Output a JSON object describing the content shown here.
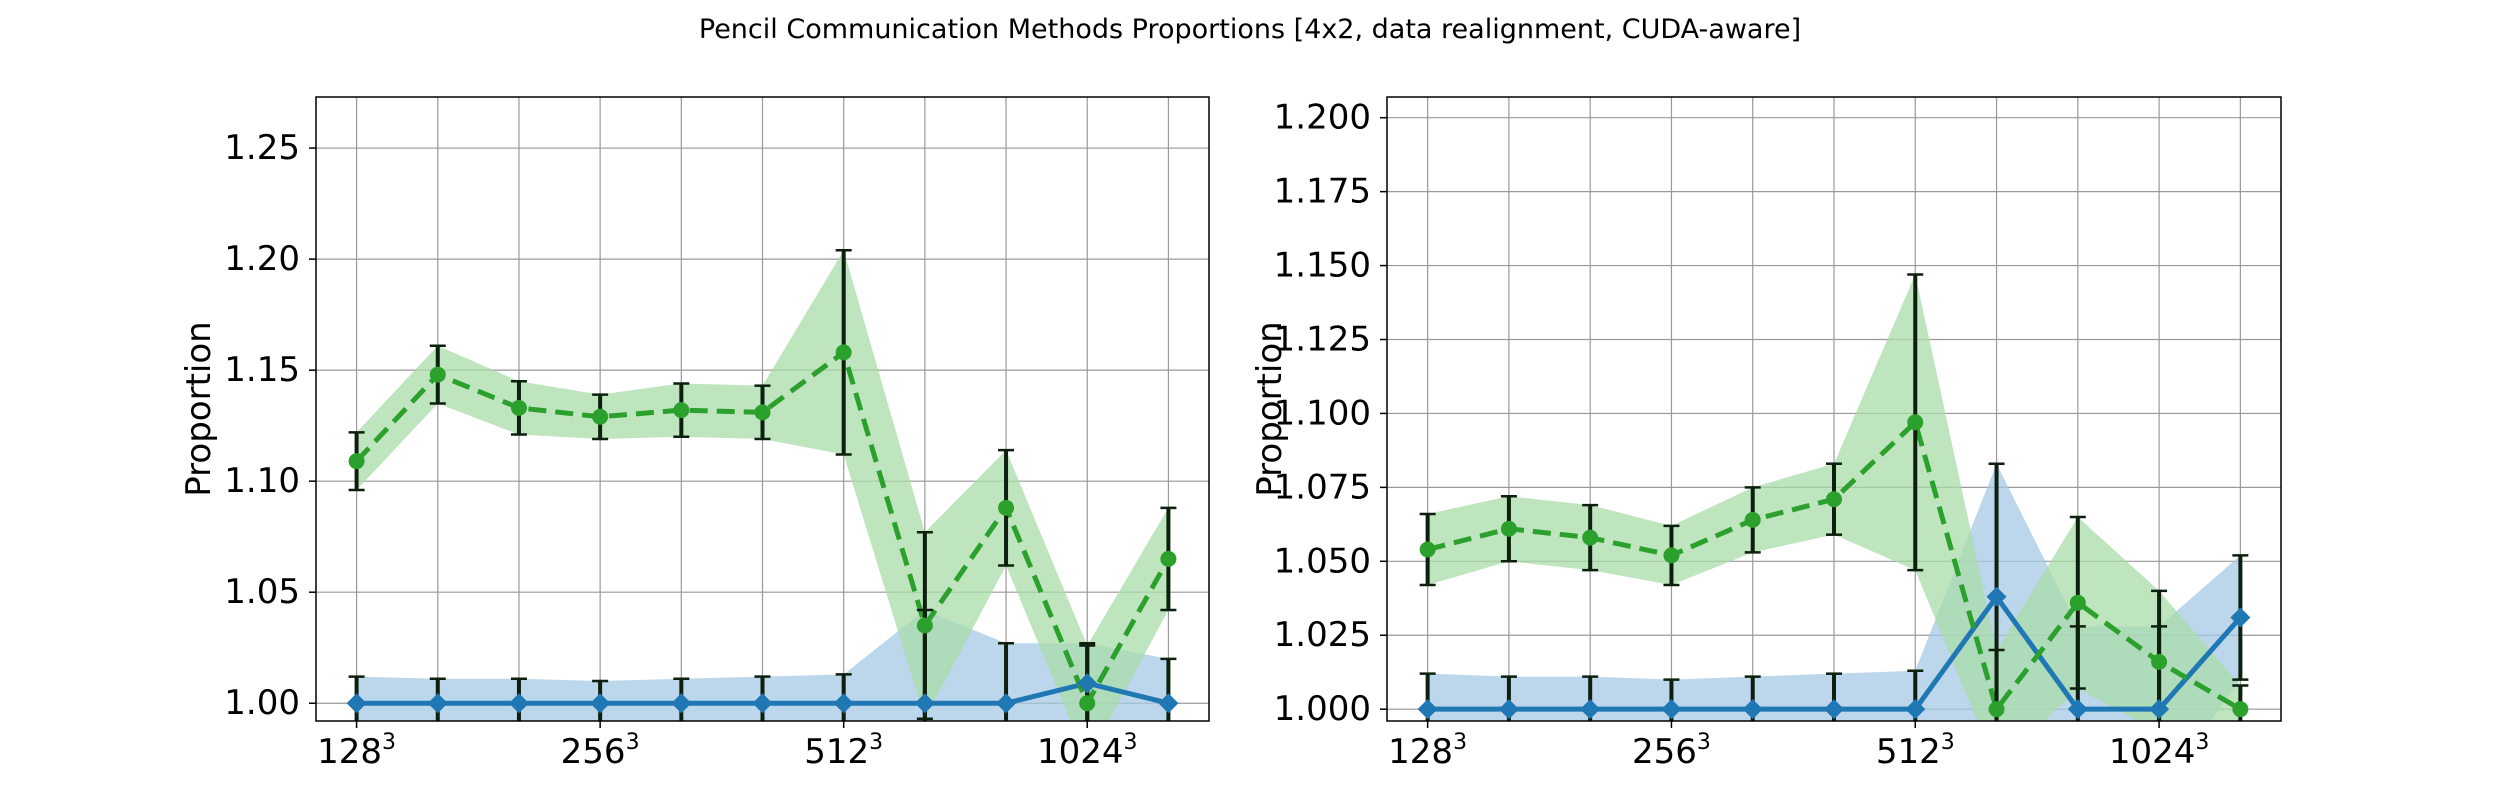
{
  "title": "Pencil Communication Methods Proportions [4x2, data realignment, CUDA-aware]",
  "colors": {
    "blue_line": "#1f77b4",
    "blue_band": "#a6c8e4",
    "green_line": "#2ca02c",
    "green_band": "#a9dca9",
    "error_bar": "#0d1f0d",
    "grid": "#999999"
  },
  "chart_data": [
    {
      "type": "line",
      "ylabel": "Proportion",
      "x": [
        0,
        1,
        2,
        3,
        4,
        5,
        6,
        7,
        8,
        9,
        10
      ],
      "xticks": [
        {
          "x": 0,
          "base": "128",
          "sup": "3"
        },
        {
          "x": 3,
          "base": "256",
          "sup": "3"
        },
        {
          "x": 6,
          "base": "512",
          "sup": "3"
        },
        {
          "x": 9,
          "base": "1024",
          "sup": "3"
        }
      ],
      "yticks": [
        1.0,
        1.05,
        1.1,
        1.15,
        1.2,
        1.25
      ],
      "ytick_labels": [
        "1.00",
        "1.05",
        "1.10",
        "1.15",
        "1.20",
        "1.25"
      ],
      "ylim": [
        0.992,
        1.273
      ],
      "xlim": [
        -0.5,
        10.5
      ],
      "grid": true,
      "series": [
        {
          "style": "solid",
          "marker": "diamond",
          "color": "blue",
          "values": [
            1.0,
            1.0,
            1.0,
            1.0,
            1.0,
            1.0,
            1.0,
            1.0,
            1.0,
            1.009,
            1.0
          ],
          "err": [
            0.012,
            0.011,
            0.011,
            0.01,
            0.011,
            0.012,
            0.013,
            0.042,
            0.027,
            0.018,
            0.02
          ],
          "band_lower": [
            0.992,
            0.992,
            0.992,
            0.992,
            0.992,
            0.992,
            0.992,
            0.992,
            0.992,
            0.992,
            0.992
          ],
          "band_upper": [
            1.012,
            1.011,
            1.011,
            1.01,
            1.011,
            1.012,
            1.013,
            1.042,
            1.027,
            1.027,
            1.02
          ]
        },
        {
          "style": "dashed",
          "marker": "circle",
          "color": "green",
          "values": [
            1.109,
            1.148,
            1.133,
            1.129,
            1.132,
            1.131,
            1.158,
            1.035,
            1.088,
            1.0,
            1.065
          ],
          "err": [
            0.013,
            0.013,
            0.012,
            0.01,
            0.012,
            0.012,
            0.046,
            0.042,
            0.026,
            0.026,
            0.023
          ]
        }
      ]
    },
    {
      "type": "line",
      "ylabel": "Proportion",
      "x": [
        0,
        1,
        2,
        3,
        4,
        5,
        6,
        7,
        8,
        9,
        10
      ],
      "xticks": [
        {
          "x": 0,
          "base": "128",
          "sup": "3"
        },
        {
          "x": 3,
          "base": "256",
          "sup": "3"
        },
        {
          "x": 6,
          "base": "512",
          "sup": "3"
        },
        {
          "x": 9,
          "base": "1024",
          "sup": "3"
        }
      ],
      "yticks": [
        1.0,
        1.025,
        1.05,
        1.075,
        1.1,
        1.125,
        1.15,
        1.175,
        1.2
      ],
      "ytick_labels": [
        "1.000",
        "1.025",
        "1.050",
        "1.075",
        "1.100",
        "1.125",
        "1.150",
        "1.175",
        "1.200"
      ],
      "ylim": [
        0.996,
        1.207
      ],
      "xlim": [
        -0.5,
        10.5
      ],
      "grid": true,
      "series": [
        {
          "style": "solid",
          "marker": "diamond",
          "color": "blue",
          "values": [
            1.0,
            1.0,
            1.0,
            1.0,
            1.0,
            1.0,
            1.0,
            1.038,
            1.0,
            1.0,
            1.031
          ],
          "err": [
            0.012,
            0.011,
            0.011,
            0.01,
            0.011,
            0.012,
            0.013,
            0.045,
            0.028,
            0.028,
            0.021
          ]
        },
        {
          "style": "dashed",
          "marker": "circle",
          "color": "green",
          "values": [
            1.054,
            1.061,
            1.058,
            1.052,
            1.064,
            1.071,
            1.097,
            1.0,
            1.036,
            1.016,
            1.0
          ],
          "err": [
            0.012,
            0.011,
            0.011,
            0.01,
            0.011,
            0.012,
            0.05,
            0.02,
            0.029,
            0.024,
            0.008
          ]
        }
      ]
    }
  ]
}
